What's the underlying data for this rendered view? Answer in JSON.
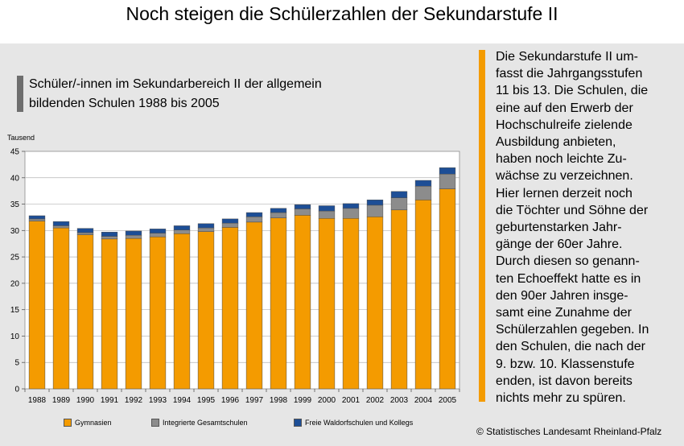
{
  "header": {
    "title": "Noch steigen die Schülerzahlen der Sekundarstufe II"
  },
  "chart_data": {
    "type": "bar",
    "stacked": true,
    "subtitle_line1": "Schüler/-innen im Sekundarbereich II der allgemein",
    "subtitle_line2": "bildenden Schulen 1988 bis 2005",
    "ylabel": "Tausend",
    "ylim": [
      0,
      45
    ],
    "yticks": [
      0,
      5,
      10,
      15,
      20,
      25,
      30,
      35,
      40,
      45
    ],
    "grid": true,
    "legend_position": "bottom",
    "categories": [
      "1988",
      "1989",
      "1990",
      "1991",
      "1992",
      "1993",
      "1994",
      "1995",
      "1996",
      "1997",
      "1998",
      "1999",
      "2000",
      "2001",
      "2002",
      "2003",
      "2004",
      "2005"
    ],
    "series": [
      {
        "name": "Gymnasien",
        "color": "#f49b00",
        "values": [
          31.8,
          30.5,
          29.2,
          28.4,
          28.5,
          28.8,
          29.4,
          29.8,
          30.6,
          31.6,
          32.4,
          32.9,
          32.3,
          32.3,
          32.6,
          33.9,
          35.8,
          37.9
        ]
      },
      {
        "name": "Integrierte Gesamtschulen",
        "color": "#8c8c8c",
        "values": [
          0.4,
          0.4,
          0.4,
          0.5,
          0.6,
          0.7,
          0.7,
          0.7,
          0.8,
          1.0,
          1.0,
          1.2,
          1.4,
          1.9,
          2.2,
          2.3,
          2.6,
          2.8
        ]
      },
      {
        "name": "Freie Waldorfschulen und Kollegs",
        "color": "#1d4e96",
        "values": [
          0.6,
          0.8,
          0.8,
          0.8,
          0.8,
          0.8,
          0.8,
          0.8,
          0.8,
          0.8,
          0.8,
          0.8,
          1.0,
          0.9,
          1.0,
          1.2,
          1.1,
          1.2
        ]
      }
    ]
  },
  "sidebar": {
    "text": "Die Sekundarstufe II um-\nfasst die Jahrgangsstufen\n11 bis 13. Die Schulen, die\neine auf den Erwerb der\nHochschulreife zielende\nAusbildung anbieten,\nhaben noch leichte Zu-\nwächse zu verzeichnen.\nHier lernen derzeit noch\ndie Töchter und Söhne der\ngeburtenstarken Jahr-\ngänge der 60er Jahre.\nDurch diesen so genann-\nten Echoeffekt hatte es in\nden 90er Jahren insge-\nsamt eine Zunahme der\nSchülerzahlen gegeben. In\nden Schulen, die nach der\n9. bzw. 10. Klassenstufe\nenden, ist davon bereits\nnichts mehr zu spüren."
  },
  "footer": {
    "source": "© Statistisches Landesamt Rheinland-Pfalz"
  }
}
